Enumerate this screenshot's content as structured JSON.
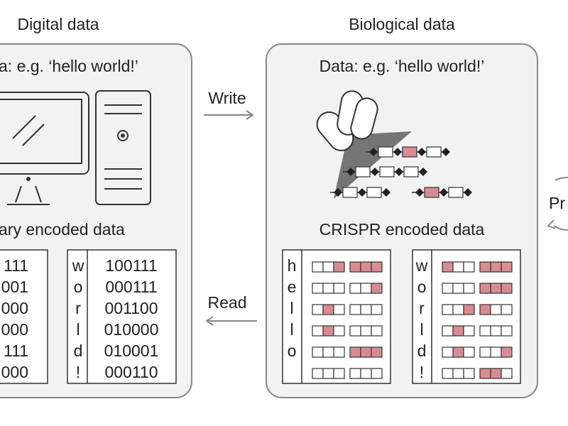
{
  "left_panel": {
    "title": "Digital data",
    "data_text": "a: e.g. ‘hello world!’",
    "encoded_label": "ary encoded data",
    "table_fragment": [
      "111",
      "001",
      "000",
      "000",
      "111",
      "000"
    ],
    "table": {
      "letters": [
        "w",
        "o",
        "r",
        "l",
        "d",
        "!"
      ],
      "codes": [
        "100111",
        "000111",
        "001100",
        "010000",
        "010001",
        "000110"
      ]
    }
  },
  "write_label": "Write",
  "read_label": "Read",
  "right_panel": {
    "title": "Biological data",
    "data_text": "Data: e.g. ‘hello world!’",
    "encoded_label": "CRISPR encoded data",
    "tables": [
      {
        "letters": [
          "h",
          "e",
          "l",
          "l",
          "o"
        ]
      },
      {
        "letters": [
          "w",
          "o",
          "r",
          "l",
          "d",
          "!"
        ]
      }
    ]
  },
  "right_edge_label": "Pr"
}
